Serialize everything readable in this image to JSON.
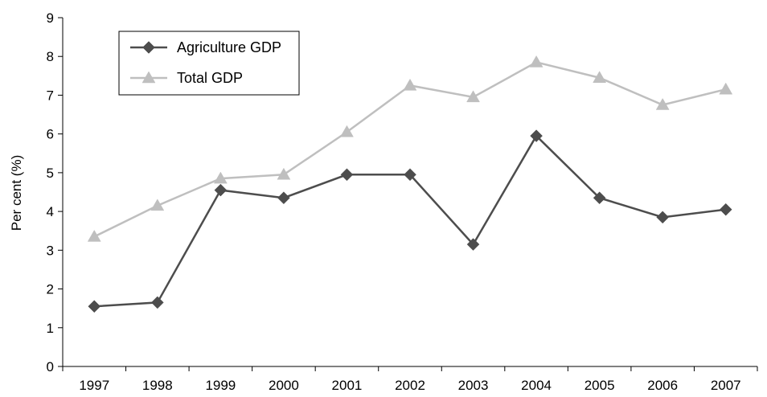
{
  "chart_data": {
    "type": "line",
    "title": "",
    "xlabel": "",
    "ylabel": "Per cent (%)",
    "ylim": [
      0,
      9
    ],
    "yticks": [
      "0",
      "1",
      "2",
      "3",
      "4",
      "5",
      "6",
      "7",
      "8",
      "9"
    ],
    "categories": [
      "1997",
      "1998",
      "1999",
      "2000",
      "2001",
      "2002",
      "2003",
      "2004",
      "2005",
      "2006",
      "2007"
    ],
    "grid": false,
    "legend_position": "top-left",
    "series": [
      {
        "name": "Agriculture GDP",
        "marker": "diamond",
        "color": "#4d4d4d",
        "values": [
          1.55,
          1.65,
          4.55,
          4.35,
          4.95,
          4.95,
          3.15,
          5.95,
          4.35,
          3.85,
          4.05
        ]
      },
      {
        "name": "Total GDP",
        "marker": "triangle",
        "color": "#bfbfbf",
        "values": [
          3.35,
          4.15,
          4.85,
          4.95,
          6.05,
          7.25,
          6.95,
          7.85,
          7.45,
          6.75,
          7.15
        ]
      }
    ]
  }
}
